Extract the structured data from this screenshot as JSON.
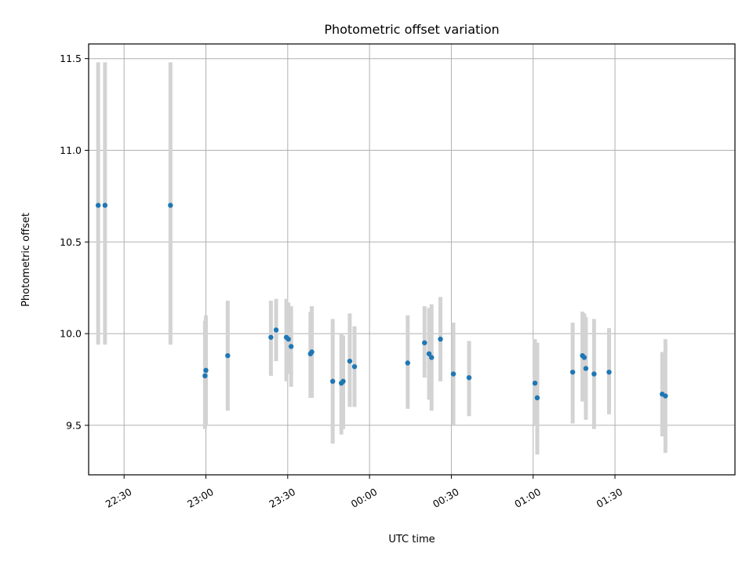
{
  "chart_data": {
    "type": "scatter",
    "title": "Photometric offset variation",
    "xlabel": "UTC time",
    "ylabel": "Photometric offset",
    "x_type": "time",
    "xlim": [
      "22:17",
      "02:14"
    ],
    "ylim": [
      9.23,
      11.58
    ],
    "x_ticks": [
      "22:30",
      "23:00",
      "23:30",
      "00:00",
      "00:30",
      "01:00",
      "01:30"
    ],
    "y_ticks": [
      "9.5",
      "10.0",
      "10.5",
      "11.0",
      "11.5"
    ],
    "grid": true,
    "legend": "none",
    "colors": {
      "marker": "#1f77b4",
      "errorbar": "#d3d3d3",
      "grid": "#b0b0b0"
    },
    "series": [
      {
        "points": [
          {
            "x": "22:20:30",
            "y": 10.7,
            "ylow": 9.94,
            "yhigh": 11.48
          },
          {
            "x": "22:23:00",
            "y": 10.7,
            "ylow": 9.94,
            "yhigh": 11.48
          },
          {
            "x": "22:47:00",
            "y": 10.7,
            "ylow": 9.94,
            "yhigh": 11.48
          },
          {
            "x": "22:59:40",
            "y": 9.77,
            "ylow": 9.48,
            "yhigh": 10.07
          },
          {
            "x": "23:00:00",
            "y": 9.8,
            "ylow": 9.5,
            "yhigh": 10.1
          },
          {
            "x": "23:08:00",
            "y": 9.88,
            "ylow": 9.58,
            "yhigh": 10.18
          },
          {
            "x": "23:23:50",
            "y": 9.98,
            "ylow": 9.77,
            "yhigh": 10.18
          },
          {
            "x": "23:25:45",
            "y": 10.02,
            "ylow": 9.85,
            "yhigh": 10.19
          },
          {
            "x": "23:29:30",
            "y": 9.98,
            "ylow": 9.74,
            "yhigh": 10.19
          },
          {
            "x": "23:30:15",
            "y": 9.97,
            "ylow": 9.78,
            "yhigh": 10.17
          },
          {
            "x": "23:31:15",
            "y": 9.93,
            "ylow": 9.71,
            "yhigh": 10.15
          },
          {
            "x": "23:38:20",
            "y": 9.89,
            "ylow": 9.65,
            "yhigh": 10.12
          },
          {
            "x": "23:38:50",
            "y": 9.9,
            "ylow": 9.65,
            "yhigh": 10.15
          },
          {
            "x": "23:46:30",
            "y": 9.74,
            "ylow": 9.4,
            "yhigh": 10.08
          },
          {
            "x": "23:49:40",
            "y": 9.73,
            "ylow": 9.45,
            "yhigh": 10.0
          },
          {
            "x": "23:50:20",
            "y": 9.74,
            "ylow": 9.48,
            "yhigh": 9.99
          },
          {
            "x": "23:52:45",
            "y": 9.85,
            "ylow": 9.6,
            "yhigh": 10.11
          },
          {
            "x": "23:54:30",
            "y": 9.82,
            "ylow": 9.6,
            "yhigh": 10.04
          },
          {
            "x": "00:14:00",
            "y": 9.84,
            "ylow": 9.59,
            "yhigh": 10.1
          },
          {
            "x": "00:20:10",
            "y": 9.95,
            "ylow": 9.76,
            "yhigh": 10.15
          },
          {
            "x": "00:21:50",
            "y": 9.89,
            "ylow": 9.64,
            "yhigh": 10.14
          },
          {
            "x": "00:22:45",
            "y": 9.87,
            "ylow": 9.58,
            "yhigh": 10.16
          },
          {
            "x": "00:26:00",
            "y": 9.97,
            "ylow": 9.74,
            "yhigh": 10.2
          },
          {
            "x": "00:30:45",
            "y": 9.78,
            "ylow": 9.5,
            "yhigh": 10.06
          },
          {
            "x": "00:36:30",
            "y": 9.76,
            "ylow": 9.55,
            "yhigh": 9.96
          },
          {
            "x": "01:00:40",
            "y": 9.73,
            "ylow": 9.5,
            "yhigh": 9.97
          },
          {
            "x": "01:01:30",
            "y": 9.65,
            "ylow": 9.34,
            "yhigh": 9.95
          },
          {
            "x": "01:14:30",
            "y": 9.79,
            "ylow": 9.51,
            "yhigh": 10.06
          },
          {
            "x": "01:18:05",
            "y": 9.88,
            "ylow": 9.63,
            "yhigh": 10.12
          },
          {
            "x": "01:18:45",
            "y": 9.87,
            "ylow": 9.63,
            "yhigh": 10.11
          },
          {
            "x": "01:19:20",
            "y": 9.81,
            "ylow": 9.53,
            "yhigh": 10.09
          },
          {
            "x": "01:22:20",
            "y": 9.78,
            "ylow": 9.48,
            "yhigh": 10.08
          },
          {
            "x": "01:27:50",
            "y": 9.79,
            "ylow": 9.56,
            "yhigh": 10.03
          },
          {
            "x": "01:47:20",
            "y": 9.67,
            "ylow": 9.44,
            "yhigh": 9.9
          },
          {
            "x": "01:48:30",
            "y": 9.66,
            "ylow": 9.35,
            "yhigh": 9.97
          }
        ]
      }
    ]
  }
}
